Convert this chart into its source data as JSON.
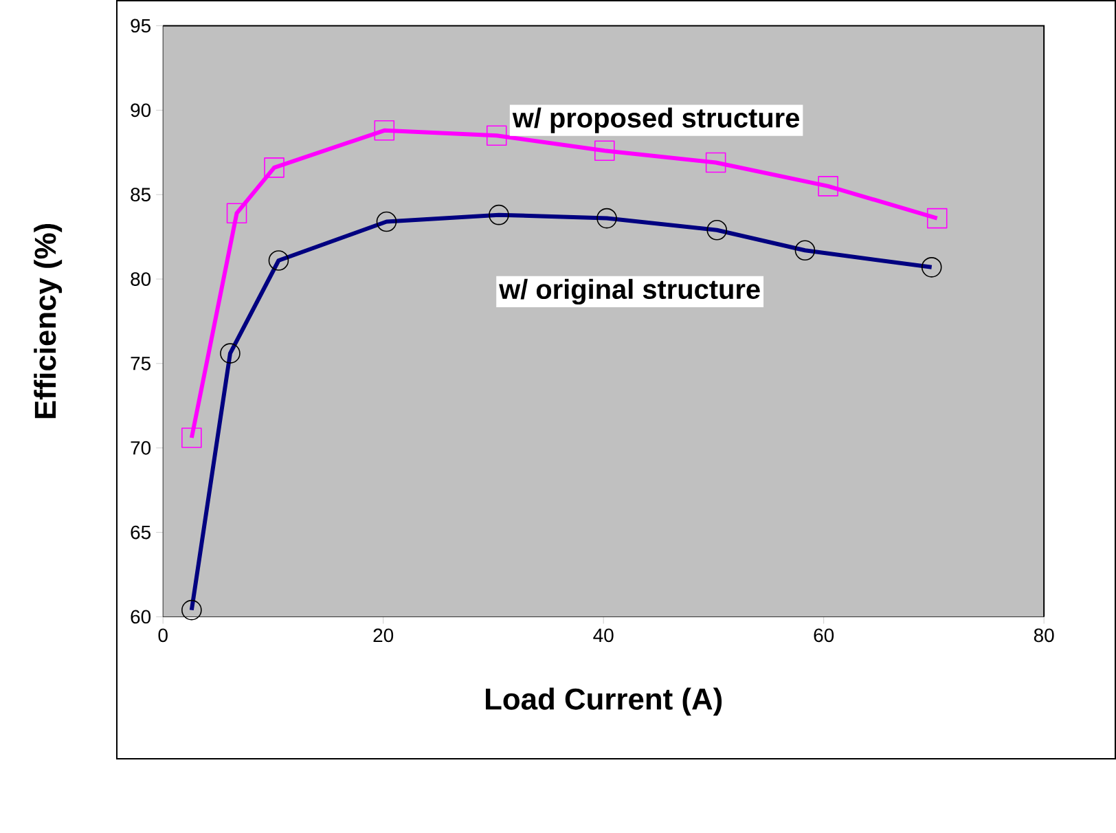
{
  "chart_data": {
    "type": "line",
    "xlabel": "Load Current (A)",
    "ylabel": "Efficiency (%)",
    "xlim": [
      0,
      80
    ],
    "xticks": [
      0,
      20,
      40,
      60,
      80
    ],
    "ylim": [
      60,
      95
    ],
    "yticks": [
      60,
      65,
      70,
      75,
      80,
      85,
      90,
      95
    ],
    "grid": false,
    "legend": false,
    "line_style": "solid",
    "series": [
      {
        "name": "w/ proposed structure",
        "color": "#ff00ff",
        "marker": "square",
        "x": [
          2.6,
          6.7,
          10.1,
          20.1,
          30.3,
          40.1,
          50.2,
          60.4,
          70.3
        ],
        "values": [
          70.6,
          83.9,
          86.6,
          88.8,
          88.5,
          87.6,
          86.9,
          85.5,
          83.6
        ]
      },
      {
        "name": "w/ original structure",
        "color": "#000080",
        "marker": "circle",
        "x": [
          2.6,
          6.1,
          10.5,
          20.3,
          30.5,
          40.3,
          50.3,
          58.3,
          69.8
        ],
        "values": [
          60.4,
          75.6,
          81.1,
          83.4,
          83.8,
          83.6,
          82.9,
          81.7,
          80.7
        ]
      }
    ]
  }
}
